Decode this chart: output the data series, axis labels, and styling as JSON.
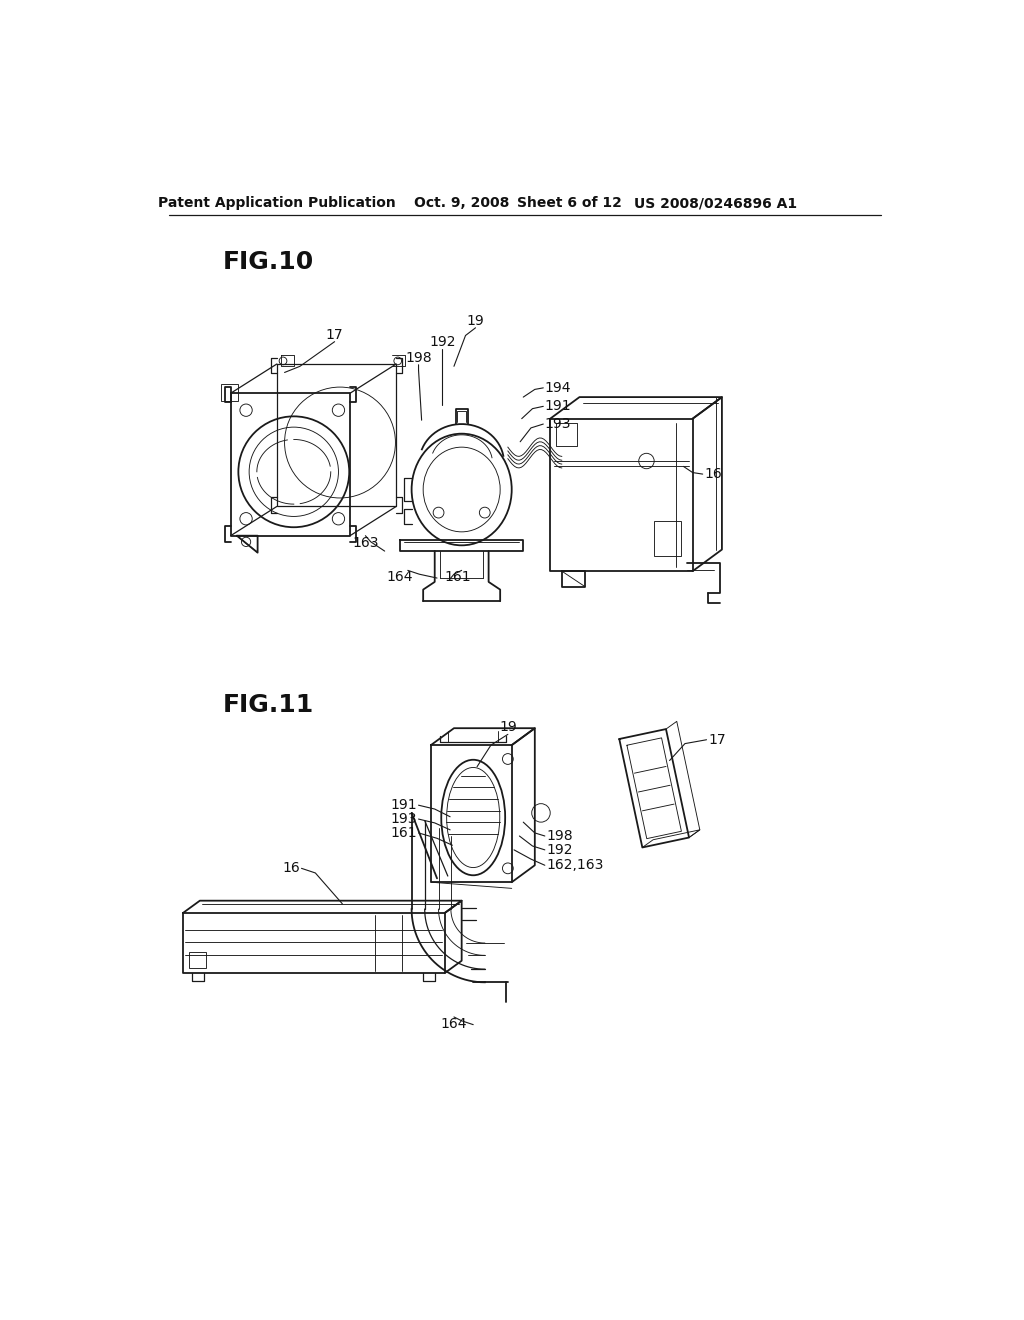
{
  "bg_color": "#ffffff",
  "line_color": "#1a1a1a",
  "header_text": "Patent Application Publication",
  "header_date": "Oct. 9, 2008",
  "header_sheet": "Sheet 6 of 12",
  "header_patent": "US 2008/0246896 A1",
  "fig10_label": "FIG.10",
  "fig11_label": "FIG.11",
  "lw_main": 1.3,
  "lw_thin": 0.65,
  "lw_med": 0.9
}
